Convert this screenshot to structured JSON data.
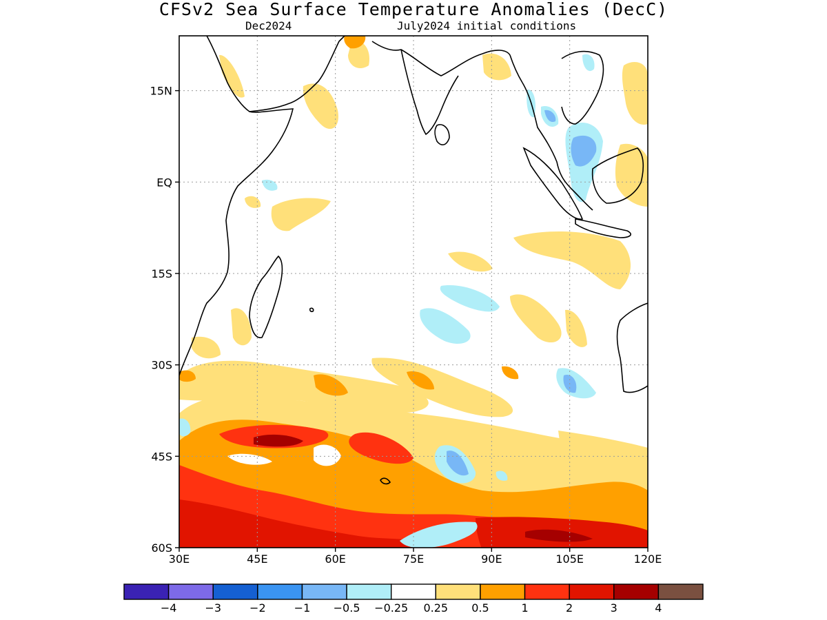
{
  "title": "CFSv2 Sea Surface Temperature Anomalies (DecC)",
  "subtitle_left": "Dec2024",
  "subtitle_right": "July2024 initial conditions",
  "map": {
    "lon_range": [
      30,
      120
    ],
    "lat_range": [
      -60,
      24
    ],
    "lon_ticks": [
      "30E",
      "45E",
      "60E",
      "75E",
      "90E",
      "105E",
      "120E"
    ],
    "lat_ticks": [
      "15N",
      "EQ",
      "15S",
      "30S",
      "45S",
      "60S"
    ],
    "grid": "dotted"
  },
  "colorbar": {
    "colors": [
      "#3a22b4",
      "#7d6ae8",
      "#1560d2",
      "#3a94f2",
      "#78b7f6",
      "#b0eef8",
      "#ffffff",
      "#ffe07a",
      "#ffa000",
      "#ff3210",
      "#e11400",
      "#a50000",
      "#7a5040"
    ],
    "labels": [
      "−4",
      "−3",
      "−2",
      "−1",
      "−0.5",
      "−0.25",
      "0.25",
      "0.5",
      "1",
      "2",
      "3",
      "4"
    ]
  }
}
